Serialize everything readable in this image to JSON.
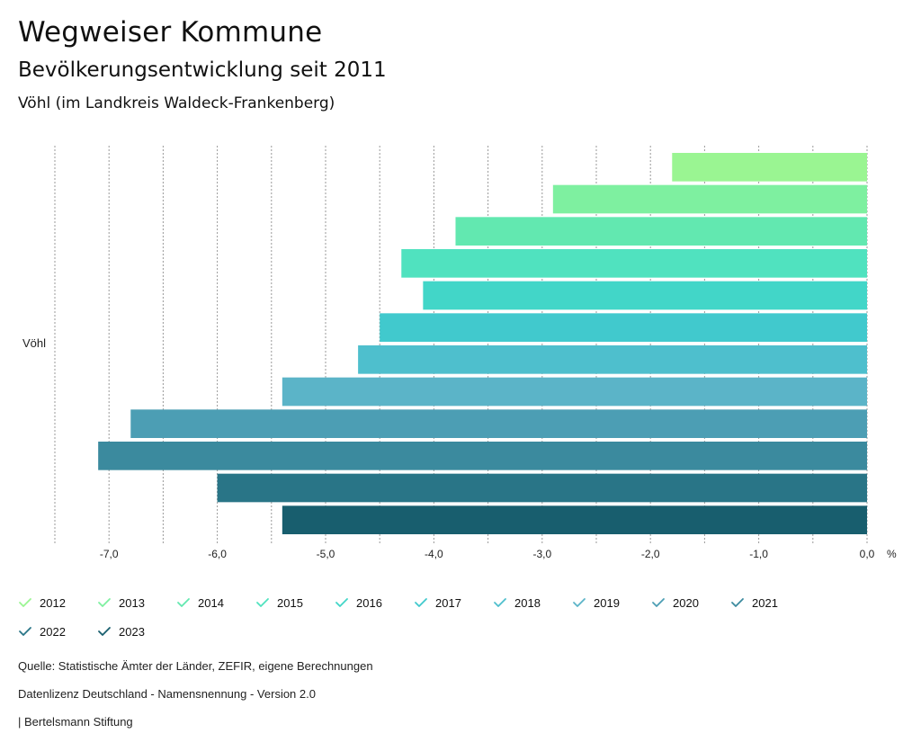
{
  "header": {
    "title": "Wegweiser Kommune",
    "subtitle": "Bevölkerungsentwicklung seit 2011",
    "region": "Vöhl (im Landkreis Waldeck-Frankenberg)"
  },
  "chart_data": {
    "type": "bar",
    "orientation": "horizontal",
    "categories": [
      "Vöhl"
    ],
    "series": [
      {
        "name": "2012",
        "values": [
          -1.8
        ],
        "color": "#9af592"
      },
      {
        "name": "2013",
        "values": [
          -2.9
        ],
        "color": "#7ef0a0"
      },
      {
        "name": "2014",
        "values": [
          -3.8
        ],
        "color": "#62e8b0"
      },
      {
        "name": "2015",
        "values": [
          -4.3
        ],
        "color": "#50e2bf"
      },
      {
        "name": "2016",
        "values": [
          -4.1
        ],
        "color": "#42d6c8"
      },
      {
        "name": "2017",
        "values": [
          -4.5
        ],
        "color": "#41c9cd"
      },
      {
        "name": "2018",
        "values": [
          -4.7
        ],
        "color": "#4ebfcd"
      },
      {
        "name": "2019",
        "values": [
          -5.4
        ],
        "color": "#5bb4c8"
      },
      {
        "name": "2020",
        "values": [
          -6.8
        ],
        "color": "#4c9eb4"
      },
      {
        "name": "2021",
        "values": [
          -7.1
        ],
        "color": "#3b8a9e"
      },
      {
        "name": "2022",
        "values": [
          -6.0
        ],
        "color": "#297587"
      },
      {
        "name": "2023",
        "values": [
          -5.4
        ],
        "color": "#185e6e"
      }
    ],
    "xlim": [
      -7.5,
      0
    ],
    "ticks": [
      -7.0,
      -6.0,
      -5.0,
      -4.0,
      -3.0,
      -2.0,
      -1.0,
      0.0
    ],
    "tick_labels": [
      "-7,0",
      "-6,0",
      "-5,0",
      "-4,0",
      "-3,0",
      "-2,0",
      "-1,0",
      "0,0"
    ],
    "unit": "%",
    "grid": true,
    "legend_position": "bottom"
  },
  "footer": {
    "source": "Quelle: Statistische Ämter der Länder, ZEFIR, eigene Berechnungen",
    "license": "Datenlizenz Deutschland - Namensnennung - Version 2.0",
    "publisher": "| Bertelsmann Stiftung"
  }
}
